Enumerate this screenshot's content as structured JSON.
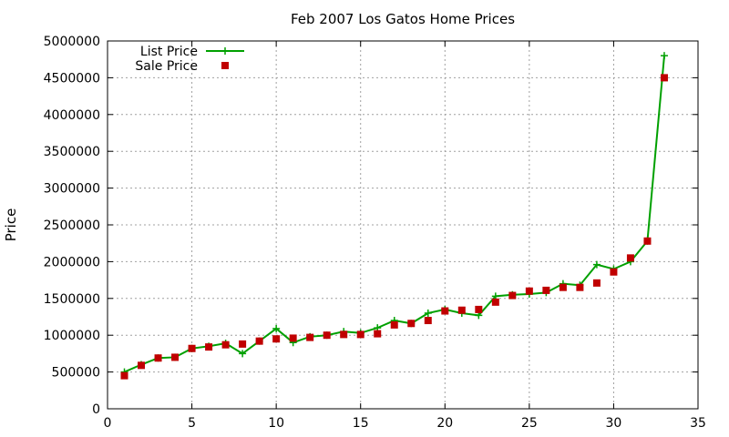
{
  "chart_data": {
    "type": "line",
    "title": "Feb 2007 Los Gatos Home Prices",
    "xlabel": "",
    "ylabel": "Price",
    "xlim": [
      0,
      35
    ],
    "ylim": [
      0,
      5000000
    ],
    "x_ticks": [
      0,
      5,
      10,
      15,
      20,
      25,
      30,
      35
    ],
    "y_ticks": [
      0,
      500000,
      1000000,
      1500000,
      2000000,
      2500000,
      3000000,
      3500000,
      4000000,
      4500000,
      5000000
    ],
    "grid": true,
    "legend_position": "top-left",
    "x": [
      1,
      2,
      3,
      4,
      5,
      6,
      7,
      8,
      9,
      10,
      11,
      12,
      13,
      14,
      15,
      16,
      17,
      18,
      19,
      20,
      21,
      22,
      23,
      24,
      25,
      26,
      27,
      28,
      29,
      30,
      31,
      32,
      33
    ],
    "series": [
      {
        "name": "List Price",
        "style": "lines+crosses",
        "color": "#00a000",
        "values": [
          500000,
          600000,
          690000,
          700000,
          820000,
          850000,
          890000,
          750000,
          920000,
          1090000,
          900000,
          980000,
          1000000,
          1050000,
          1030000,
          1100000,
          1200000,
          1160000,
          1300000,
          1350000,
          1300000,
          1270000,
          1530000,
          1550000,
          1560000,
          1580000,
          1700000,
          1680000,
          1960000,
          1900000,
          2000000,
          2280000,
          4800000
        ]
      },
      {
        "name": "Sale Price",
        "style": "squares",
        "color": "#c00000",
        "values": [
          450000,
          590000,
          690000,
          700000,
          820000,
          840000,
          870000,
          880000,
          920000,
          950000,
          960000,
          970000,
          1000000,
          1010000,
          1010000,
          1020000,
          1140000,
          1160000,
          1200000,
          1330000,
          1340000,
          1350000,
          1450000,
          1540000,
          1600000,
          1610000,
          1650000,
          1650000,
          1710000,
          1860000,
          2050000,
          2280000,
          4500000
        ]
      }
    ]
  }
}
